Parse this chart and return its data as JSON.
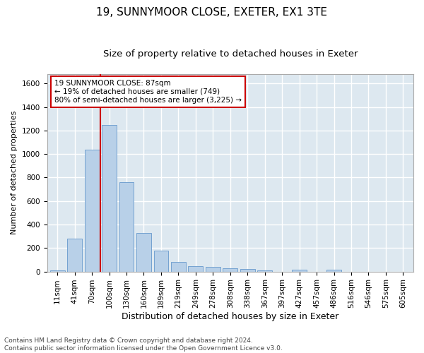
{
  "title1": "19, SUNNYMOOR CLOSE, EXETER, EX1 3TE",
  "title2": "Size of property relative to detached houses in Exeter",
  "xlabel": "Distribution of detached houses by size in Exeter",
  "ylabel": "Number of detached properties",
  "bar_color": "#b8d0e8",
  "bar_edge_color": "#6699cc",
  "background_color": "#dde8f0",
  "grid_color": "#ffffff",
  "categories": [
    "11sqm",
    "41sqm",
    "70sqm",
    "100sqm",
    "130sqm",
    "160sqm",
    "189sqm",
    "219sqm",
    "249sqm",
    "278sqm",
    "308sqm",
    "338sqm",
    "367sqm",
    "397sqm",
    "427sqm",
    "457sqm",
    "486sqm",
    "516sqm",
    "546sqm",
    "575sqm",
    "605sqm"
  ],
  "values": [
    10,
    280,
    1035,
    1250,
    760,
    330,
    180,
    80,
    45,
    40,
    27,
    22,
    12,
    0,
    15,
    0,
    13,
    0,
    0,
    0,
    0
  ],
  "ylim": [
    0,
    1680
  ],
  "yticks": [
    0,
    200,
    400,
    600,
    800,
    1000,
    1200,
    1400,
    1600
  ],
  "property_line_x": 2.5,
  "property_line_color": "#cc0000",
  "annotation_text": "19 SUNNYMOOR CLOSE: 87sqm\n← 19% of detached houses are smaller (749)\n80% of semi-detached houses are larger (3,225) →",
  "annotation_box_color": "#ffffff",
  "annotation_box_edge_color": "#cc0000",
  "footer1": "Contains HM Land Registry data © Crown copyright and database right 2024.",
  "footer2": "Contains public sector information licensed under the Open Government Licence v3.0.",
  "title1_fontsize": 11,
  "title2_fontsize": 9.5,
  "xlabel_fontsize": 9,
  "ylabel_fontsize": 8,
  "tick_fontsize": 7.5,
  "annotation_fontsize": 7.5,
  "footer_fontsize": 6.5
}
